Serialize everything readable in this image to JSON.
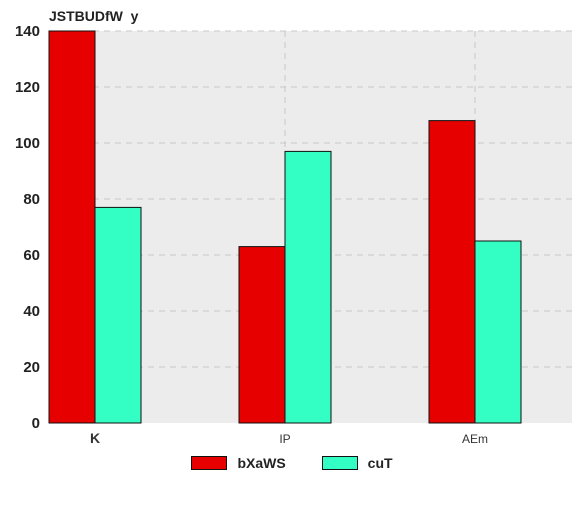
{
  "chart_data": {
    "type": "bar",
    "title": "JSTBUDfW  y",
    "categories": [
      "K",
      "IP",
      "AEm"
    ],
    "series": [
      {
        "name": "bXaWS",
        "color": "#e60000",
        "values": [
          140,
          63,
          108
        ]
      },
      {
        "name": "cuT",
        "color": "#33ffc4",
        "values": [
          77,
          97,
          65
        ]
      }
    ],
    "ylim": [
      0,
      140
    ],
    "yticks": [
      0,
      20,
      40,
      60,
      80,
      100,
      120,
      140
    ],
    "grid": true,
    "legend_position": "bottom"
  }
}
